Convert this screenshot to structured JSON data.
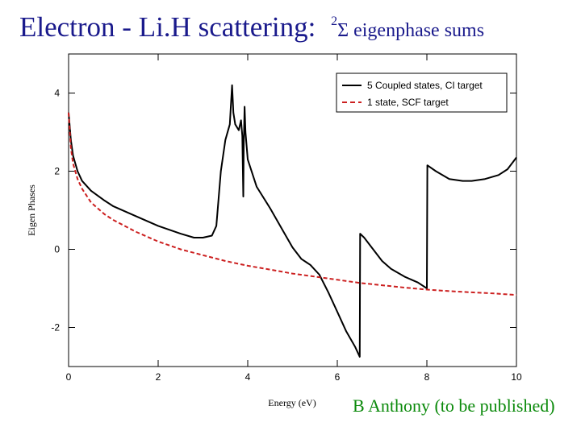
{
  "slide": {
    "title_main": "Electron - Li.H scattering:",
    "title_sup": "2",
    "title_sym": "Σ eigenphase sums",
    "credit": "B Anthony (to be published)"
  },
  "chart_data": {
    "type": "line",
    "title": "",
    "xlabel": "Energy (eV)",
    "ylabel": "Eigen Phases",
    "xlim": [
      0,
      10
    ],
    "ylim": [
      -3,
      5
    ],
    "x_ticks": [
      0,
      2,
      4,
      6,
      8,
      10
    ],
    "y_ticks": [
      -2,
      0,
      2,
      4
    ],
    "grid": false,
    "legend_position": "top-right",
    "series": [
      {
        "name": "5 Coupled states, CI target",
        "color": "#000000",
        "dash": "solid",
        "x": [
          0.0,
          0.05,
          0.1,
          0.2,
          0.3,
          0.5,
          0.8,
          1.0,
          1.5,
          2.0,
          2.5,
          2.8,
          3.0,
          3.2,
          3.3,
          3.4,
          3.5,
          3.6,
          3.65,
          3.68,
          3.72,
          3.8,
          3.85,
          3.88,
          3.9,
          3.91,
          3.93,
          3.95,
          4.0,
          4.2,
          4.5,
          4.8,
          5.0,
          5.2,
          5.4,
          5.6,
          5.8,
          6.0,
          6.2,
          6.4,
          6.5,
          6.51,
          6.6,
          6.8,
          7.0,
          7.2,
          7.5,
          7.8,
          8.0,
          8.01,
          8.2,
          8.5,
          8.8,
          9.0,
          9.3,
          9.6,
          9.8,
          10.0
        ],
        "y": [
          3.5,
          2.8,
          2.4,
          2.0,
          1.75,
          1.5,
          1.25,
          1.1,
          0.85,
          0.6,
          0.4,
          0.3,
          0.3,
          0.35,
          0.6,
          2.0,
          2.8,
          3.2,
          4.2,
          3.5,
          3.2,
          3.05,
          3.3,
          2.9,
          1.35,
          2.6,
          3.65,
          3.0,
          2.3,
          1.6,
          1.05,
          0.45,
          0.05,
          -0.25,
          -0.4,
          -0.65,
          -1.1,
          -1.6,
          -2.1,
          -2.5,
          -2.75,
          0.4,
          0.3,
          0.0,
          -0.3,
          -0.5,
          -0.7,
          -0.85,
          -1.0,
          2.15,
          2.0,
          1.8,
          1.75,
          1.75,
          1.8,
          1.9,
          2.05,
          2.35
        ]
      },
      {
        "name": "1 state, SCF target",
        "color": "#cc2020",
        "dash": "dashed",
        "x": [
          0.0,
          0.05,
          0.1,
          0.2,
          0.3,
          0.5,
          0.8,
          1.0,
          1.5,
          2.0,
          2.5,
          3.0,
          3.5,
          4.0,
          4.5,
          5.0,
          5.5,
          6.0,
          6.5,
          7.0,
          7.5,
          8.0,
          8.5,
          9.0,
          9.5,
          10.0
        ],
        "y": [
          3.5,
          2.6,
          2.2,
          1.8,
          1.55,
          1.2,
          0.9,
          0.75,
          0.45,
          0.2,
          0.0,
          -0.15,
          -0.3,
          -0.42,
          -0.52,
          -0.62,
          -0.7,
          -0.78,
          -0.86,
          -0.92,
          -0.98,
          -1.03,
          -1.07,
          -1.1,
          -1.13,
          -1.17
        ]
      }
    ]
  }
}
